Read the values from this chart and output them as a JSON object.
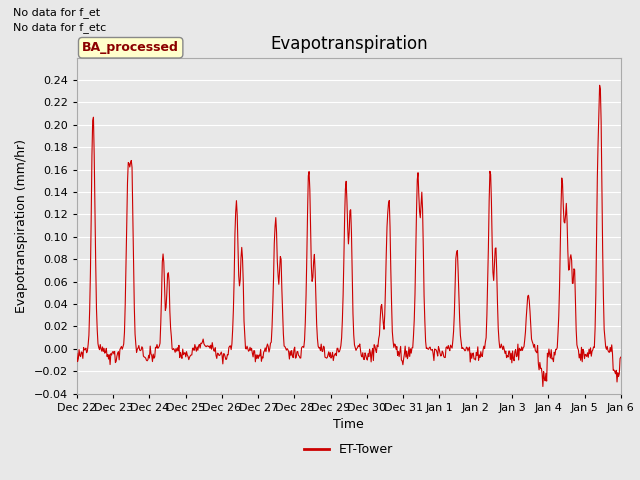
{
  "title": "Evapotranspiration",
  "ylabel": "Evapotranspiration (mm/hr)",
  "xlabel": "Time",
  "ylim": [
    -0.04,
    0.26
  ],
  "yticks": [
    -0.04,
    -0.02,
    0.0,
    0.02,
    0.04,
    0.06,
    0.08,
    0.1,
    0.12,
    0.14,
    0.16,
    0.18,
    0.2,
    0.22,
    0.24
  ],
  "line_color": "#cc0000",
  "line_width": 0.8,
  "fig_bg_color": "#e8e8e8",
  "axes_bg_color": "#e8e8e8",
  "grid_color": "#ffffff",
  "annotation_text1": "No data for f_et",
  "annotation_text2": "No data for f_etc",
  "legend_label": "ET-Tower",
  "legend_box_label": "BA_processed",
  "xtick_labels": [
    "Dec 22",
    "Dec 23",
    "Dec 24",
    "Dec 25",
    "Dec 26",
    "Dec 27",
    "Dec 28",
    "Dec 29",
    "Dec 30",
    "Dec 31",
    "Jan 1",
    "Jan 2",
    "Jan 3",
    "Jan 4",
    "Jan 5",
    "Jan 6"
  ],
  "title_fontsize": 12,
  "label_fontsize": 9,
  "tick_fontsize": 8,
  "annot_fontsize": 8
}
